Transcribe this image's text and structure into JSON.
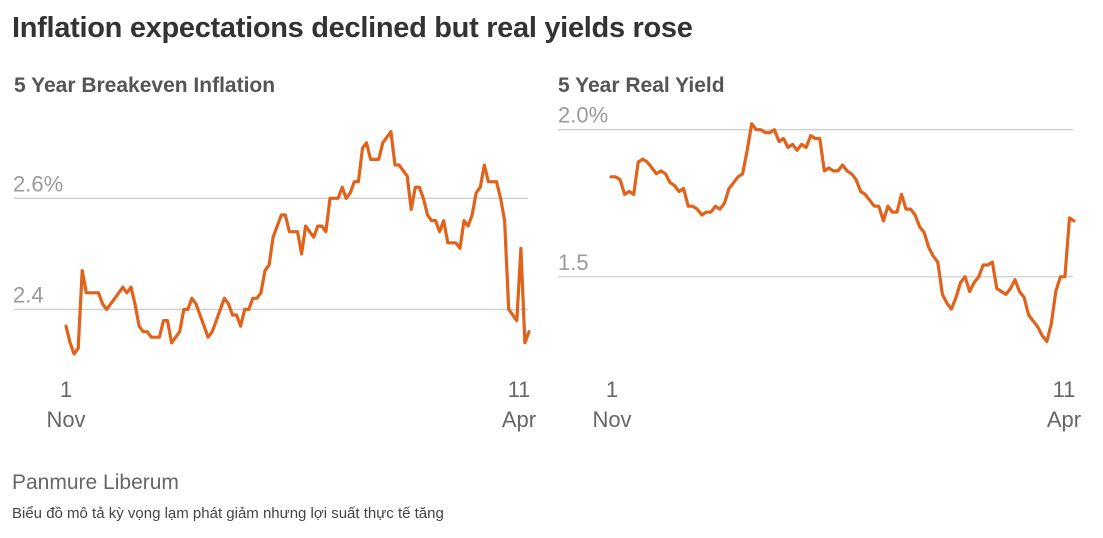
{
  "header": {
    "title": "Inflation expectations declined but real yields rose"
  },
  "footer": {
    "source": "Panmure Liberum",
    "caption": "Biểu đồ mô tả kỳ vọng lạm phát giảm nhưng lợi suất thực tế tăng"
  },
  "colors": {
    "series": "#e0621b",
    "grid": "#cfcfcf"
  },
  "chart_data": [
    {
      "type": "line",
      "title": "5 Year Breakeven Inflation",
      "ylim": [
        2.3,
        2.75
      ],
      "yticks": [
        {
          "value": 2.4,
          "label": "2.4"
        },
        {
          "value": 2.6,
          "label": "2.6%"
        }
      ],
      "xticks": [
        {
          "day": "1",
          "month": "Nov"
        },
        {
          "day": "11",
          "month": "Apr"
        }
      ],
      "grid": true,
      "legend": "none",
      "series": [
        {
          "values": [
            2.37,
            2.34,
            2.32,
            2.33,
            2.47,
            2.43,
            2.43,
            2.43,
            2.43,
            2.41,
            2.4,
            2.41,
            2.42,
            2.43,
            2.44,
            2.43,
            2.44,
            2.41,
            2.37,
            2.36,
            2.36,
            2.35,
            2.35,
            2.35,
            2.38,
            2.38,
            2.34,
            2.35,
            2.36,
            2.4,
            2.4,
            2.42,
            2.41,
            2.39,
            2.37,
            2.35,
            2.36,
            2.38,
            2.4,
            2.42,
            2.41,
            2.39,
            2.39,
            2.37,
            2.4,
            2.4,
            2.42,
            2.42,
            2.43,
            2.47,
            2.48,
            2.53,
            2.55,
            2.57,
            2.57,
            2.54,
            2.54,
            2.54,
            2.5,
            2.55,
            2.54,
            2.53,
            2.55,
            2.55,
            2.54,
            2.6,
            2.6,
            2.6,
            2.62,
            2.6,
            2.61,
            2.63,
            2.63,
            2.69,
            2.7,
            2.67,
            2.67,
            2.67,
            2.7,
            2.71,
            2.72,
            2.66,
            2.66,
            2.65,
            2.64,
            2.58,
            2.62,
            2.62,
            2.6,
            2.57,
            2.56,
            2.56,
            2.54,
            2.56,
            2.52,
            2.52,
            2.52,
            2.51,
            2.56,
            2.55,
            2.57,
            2.61,
            2.62,
            2.66,
            2.63,
            2.63,
            2.63,
            2.6,
            2.56,
            2.4,
            2.39,
            2.38,
            2.51,
            2.34,
            2.36
          ]
        }
      ]
    },
    {
      "type": "line",
      "title": "5 Year Real Yield",
      "ylim": [
        1.2,
        2.05
      ],
      "yticks": [
        {
          "value": 1.5,
          "label": "1.5"
        },
        {
          "value": 2.0,
          "label": "2.0%"
        }
      ],
      "xticks": [
        {
          "day": "1",
          "month": "Nov"
        },
        {
          "day": "11",
          "month": "Apr"
        }
      ],
      "grid": true,
      "legend": "none",
      "series": [
        {
          "values": [
            1.84,
            1.84,
            1.83,
            1.78,
            1.79,
            1.78,
            1.89,
            1.9,
            1.89,
            1.87,
            1.85,
            1.86,
            1.85,
            1.82,
            1.81,
            1.79,
            1.8,
            1.74,
            1.74,
            1.73,
            1.71,
            1.72,
            1.72,
            1.74,
            1.73,
            1.75,
            1.8,
            1.82,
            1.84,
            1.85,
            1.93,
            2.02,
            2.0,
            2.0,
            1.99,
            1.99,
            2.0,
            1.96,
            1.97,
            1.94,
            1.95,
            1.93,
            1.95,
            1.94,
            1.98,
            1.97,
            1.97,
            1.86,
            1.87,
            1.86,
            1.86,
            1.88,
            1.86,
            1.85,
            1.83,
            1.79,
            1.78,
            1.76,
            1.74,
            1.74,
            1.69,
            1.74,
            1.72,
            1.72,
            1.78,
            1.73,
            1.73,
            1.71,
            1.67,
            1.65,
            1.6,
            1.57,
            1.55,
            1.44,
            1.41,
            1.39,
            1.43,
            1.48,
            1.5,
            1.45,
            1.48,
            1.5,
            1.54,
            1.54,
            1.55,
            1.46,
            1.45,
            1.44,
            1.46,
            1.49,
            1.45,
            1.43,
            1.37,
            1.35,
            1.33,
            1.3,
            1.28,
            1.34,
            1.45,
            1.5,
            1.5,
            1.7,
            1.69
          ]
        }
      ]
    }
  ]
}
